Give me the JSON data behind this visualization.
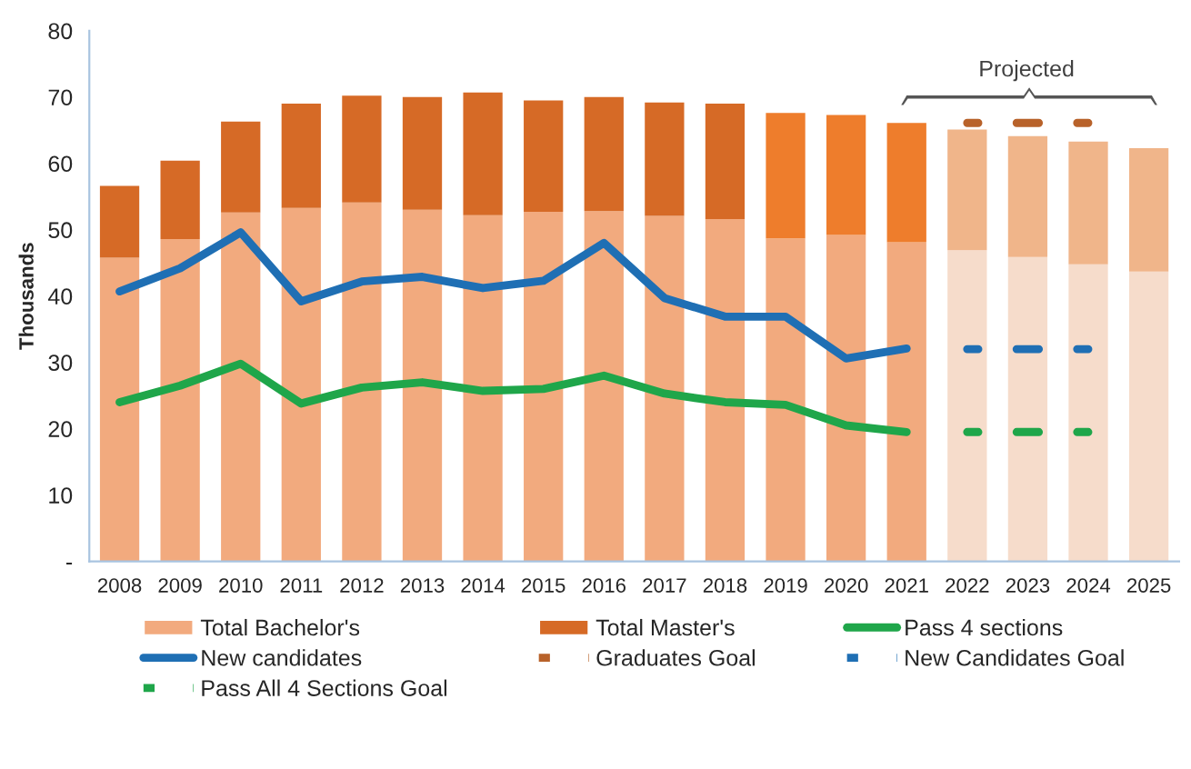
{
  "chart_data": {
    "type": "bar",
    "stacked": true,
    "ylabel": "Thousands",
    "categories": [
      "2008",
      "2009",
      "2010",
      "2011",
      "2012",
      "2013",
      "2014",
      "2015",
      "2016",
      "2017",
      "2018",
      "2019",
      "2020",
      "2021",
      "2022",
      "2023",
      "2024",
      "2025"
    ],
    "series": [
      {
        "name": "Total Bachelor's",
        "colors": [
          "#f2aa7e",
          "#f2aa7e",
          "#f2aa7e",
          "#f2aa7e",
          "#f2aa7e",
          "#f2aa7e",
          "#f2aa7e",
          "#f2aa7e",
          "#f2aa7e",
          "#f2aa7e",
          "#f2aa7e",
          "#f2aa7e",
          "#f2aa7e",
          "#f2aa7e",
          "#f6dccb",
          "#f6dccb",
          "#f6dccb",
          "#f6dccb"
        ],
        "color": "#f2aa7e",
        "values": [
          45.8,
          48.6,
          52.6,
          53.3,
          54.1,
          53.0,
          52.2,
          52.7,
          52.8,
          52.1,
          51.6,
          48.7,
          49.2,
          48.1,
          46.9,
          45.9,
          44.8,
          43.7
        ]
      },
      {
        "name": "Total Master's",
        "colors": [
          "#d66a26",
          "#d66a26",
          "#d66a26",
          "#d66a26",
          "#d66a26",
          "#d66a26",
          "#d66a26",
          "#d66a26",
          "#d66a26",
          "#d66a26",
          "#d66a26",
          "#ee7d2c",
          "#ee7d2c",
          "#ee7d2c",
          "#f0b58a",
          "#f0b58a",
          "#f0b58a",
          "#f0b58a"
        ],
        "color": "#d66a26",
        "values": [
          10.8,
          11.8,
          13.7,
          15.7,
          16.1,
          17.0,
          18.5,
          16.8,
          17.2,
          17.1,
          17.4,
          18.9,
          18.1,
          18.0,
          18.2,
          18.2,
          18.5,
          18.6
        ]
      },
      {
        "name": "Pass 4 sections",
        "type": "line",
        "color": "#1fa64a",
        "line_style": "solid",
        "values": [
          24.0,
          26.5,
          29.8,
          23.8,
          26.2,
          27.0,
          25.7,
          26.0,
          28.0,
          25.3,
          24.0,
          23.6,
          20.5,
          19.5,
          null,
          null,
          null,
          null
        ]
      },
      {
        "name": "New candidates",
        "type": "line",
        "color": "#1f6fb4",
        "line_style": "solid",
        "values": [
          40.7,
          44.2,
          49.6,
          39.2,
          42.2,
          42.9,
          41.2,
          42.3,
          48.0,
          39.7,
          36.9,
          36.9,
          30.6,
          32.1,
          null,
          null,
          null,
          null
        ]
      },
      {
        "name": "Graduates Goal",
        "type": "line",
        "color": "#b8622a",
        "line_style": "dashed",
        "values": [
          null,
          null,
          null,
          null,
          null,
          null,
          null,
          null,
          null,
          null,
          null,
          null,
          null,
          null,
          66.1,
          66.1,
          66.1,
          null
        ]
      },
      {
        "name": "New Candidates Goal",
        "type": "line",
        "color": "#1f6fb4",
        "line_style": "dashed",
        "values": [
          null,
          null,
          null,
          null,
          null,
          null,
          null,
          null,
          null,
          null,
          null,
          null,
          null,
          null,
          32.0,
          32.0,
          32.0,
          null
        ]
      },
      {
        "name": "Pass All 4 Sections Goal",
        "type": "line",
        "color": "#1fa64a",
        "line_style": "dashed",
        "values": [
          null,
          null,
          null,
          null,
          null,
          null,
          null,
          null,
          null,
          null,
          null,
          null,
          null,
          null,
          19.5,
          19.5,
          19.5,
          null
        ]
      }
    ],
    "ylim": [
      0,
      80
    ],
    "yticks": [
      {
        "value": 0,
        "label": "-"
      },
      10,
      20,
      30,
      40,
      50,
      60,
      70,
      80
    ],
    "grid": false,
    "legend": "bottom",
    "marker": "none",
    "annotations": [
      "Projected"
    ]
  }
}
